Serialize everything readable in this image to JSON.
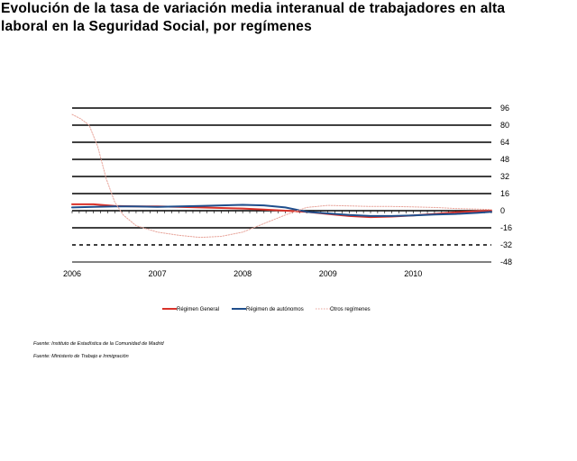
{
  "title_lines": [
    "Evolución de la tasa de variación media interanual de trabajadores en alta",
    "laboral en la Seguridad Social, por  regímenes"
  ],
  "sources": [
    "Fuente: Instituto de Estadística de la Comunidad de Madrid",
    "Fuente: Ministerio de Trabajo e Inmigración"
  ],
  "chart_data": {
    "type": "line",
    "title": "Evolución de la tasa de variación media interanual de trabajadores en alta laboral en la Seguridad Social, por  regímenes",
    "xlabel": "",
    "ylabel": "",
    "x_tick_labels": [
      "2006",
      "2007",
      "2008",
      "2009",
      "2010"
    ],
    "y_ticks": [
      96,
      80,
      64,
      48,
      32,
      16,
      0,
      -16,
      -32,
      -48
    ],
    "ylim": [
      -48,
      96
    ],
    "xlim": [
      2006.0,
      2010.9167
    ],
    "grid": true,
    "legend_position": "bottom",
    "series": [
      {
        "name": "Régimen General",
        "color": "#d9322a",
        "style": "solid",
        "x": [
          2006.0,
          2006.25,
          2006.5,
          2006.75,
          2007.0,
          2007.25,
          2007.5,
          2007.75,
          2008.0,
          2008.25,
          2008.5,
          2008.75,
          2009.0,
          2009.25,
          2009.5,
          2009.75,
          2010.0,
          2010.25,
          2010.5,
          2010.75,
          2010.9167
        ],
        "y": [
          6,
          6,
          4.5,
          4,
          4,
          3.5,
          3,
          2.5,
          2,
          1,
          0,
          -1,
          -3,
          -5,
          -6,
          -5.5,
          -4.5,
          -3,
          -1.5,
          -0.5,
          0
        ]
      },
      {
        "name": "Régimen de autónomos",
        "color": "#1f4e8c",
        "style": "solid",
        "x": [
          2006.0,
          2006.25,
          2006.5,
          2006.75,
          2007.0,
          2007.25,
          2007.5,
          2007.75,
          2008.0,
          2008.25,
          2008.5,
          2008.75,
          2009.0,
          2009.25,
          2009.5,
          2009.75,
          2010.0,
          2010.25,
          2010.5,
          2010.75,
          2010.9167
        ],
        "y": [
          3,
          3.5,
          4,
          4,
          3.5,
          4,
          4.5,
          5,
          5.5,
          5,
          3,
          -1,
          -2.5,
          -4,
          -5,
          -5,
          -4.5,
          -3.5,
          -3,
          -2,
          -1
        ]
      },
      {
        "name": "Otros regímenes",
        "color": "#e8a59b",
        "style": "dotted",
        "x": [
          2006.0,
          2006.1,
          2006.2,
          2006.3,
          2006.4,
          2006.5,
          2006.6,
          2006.75,
          2007.0,
          2007.25,
          2007.5,
          2007.75,
          2008.0,
          2008.25,
          2008.5,
          2008.75,
          2009.0,
          2009.25,
          2009.5,
          2009.75,
          2010.0,
          2010.25,
          2010.5,
          2010.75,
          2010.9167
        ],
        "y": [
          90,
          86,
          80,
          60,
          30,
          8,
          -4,
          -14,
          -20,
          -23,
          -25,
          -24,
          -20,
          -12,
          -4,
          3,
          5,
          4.5,
          4,
          4,
          3.5,
          3,
          2,
          1.5,
          1
        ]
      }
    ]
  }
}
